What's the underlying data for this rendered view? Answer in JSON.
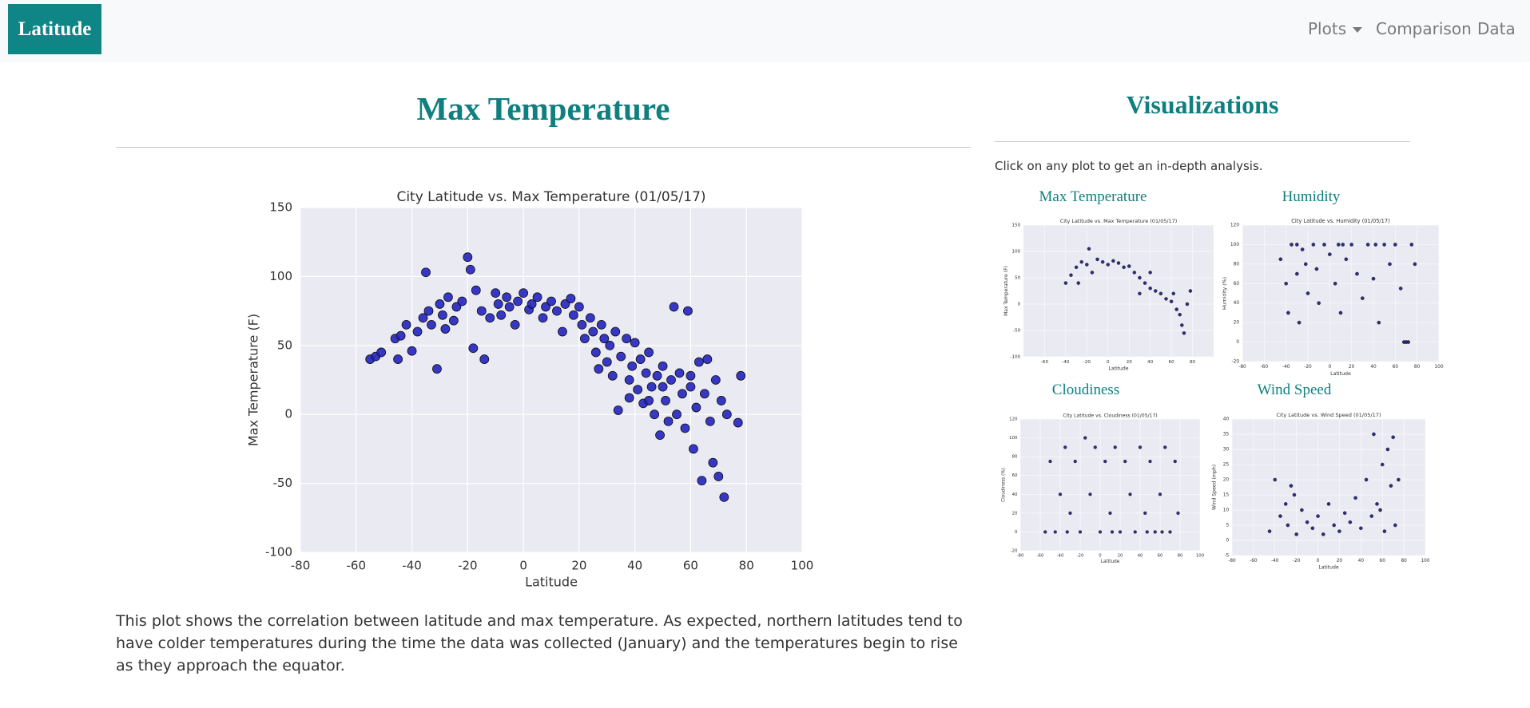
{
  "navbar": {
    "brand": "Latitude",
    "links": [
      "Plots",
      "Comparison",
      "Data"
    ]
  },
  "main": {
    "heading": "Max Temperature",
    "description": "This plot shows the correlation between latitude and max temperature. As expected, northern latitudes tend to have colder temperatures during the time the data was collected (January) and the temperatures begin to rise as they approach the equator."
  },
  "sidebar": {
    "heading": "Visualizations",
    "instruction": "Click on any plot to get an in-depth analysis.",
    "plot_titles": [
      "Max Temperature",
      "Humidity",
      "Cloudiness",
      "Wind Speed"
    ]
  },
  "chart_data": [
    {
      "type": "scatter",
      "title": "City Latitude vs. Max Temperature (01/05/17)",
      "x_label": "Latitude",
      "y_label": "Max Temperature (F)",
      "xlim": [
        -80,
        100
      ],
      "ylim": [
        -100,
        150
      ],
      "xticks": [
        -80,
        -60,
        -40,
        -20,
        0,
        20,
        40,
        60,
        80,
        100
      ],
      "yticks": [
        -100,
        -50,
        0,
        50,
        100,
        150
      ],
      "grid": true,
      "color": "#2424c0",
      "x": [
        -55,
        -53,
        -51,
        -46,
        -45,
        -44,
        -42,
        -40,
        -38,
        -36,
        -35,
        -34,
        -33,
        -31,
        -30,
        -29,
        -28,
        -27,
        -25,
        -24,
        -22,
        -20,
        -19,
        -18,
        -17,
        -15,
        -14,
        -12,
        -10,
        -9,
        -8,
        -6,
        -5,
        -3,
        -2,
        0,
        2,
        3,
        5,
        7,
        8,
        10,
        12,
        14,
        15,
        17,
        18,
        20,
        21,
        22,
        24,
        25,
        26,
        28,
        29,
        30,
        31,
        32,
        33,
        34,
        35,
        37,
        38,
        39,
        40,
        41,
        42,
        43,
        44,
        45,
        46,
        47,
        48,
        49,
        50,
        51,
        52,
        53,
        54,
        55,
        56,
        57,
        58,
        59,
        60,
        61,
        62,
        63,
        64,
        65,
        66,
        67,
        68,
        69,
        70,
        71,
        72,
        73,
        77,
        78,
        60,
        50,
        45,
        38,
        27
      ],
      "values": [
        40,
        42,
        45,
        55,
        40,
        57,
        65,
        46,
        60,
        70,
        103,
        75,
        65,
        33,
        80,
        72,
        62,
        85,
        68,
        78,
        82,
        114,
        105,
        48,
        90,
        75,
        40,
        70,
        88,
        80,
        72,
        85,
        78,
        65,
        82,
        88,
        76,
        80,
        85,
        70,
        78,
        82,
        75,
        60,
        80,
        84,
        72,
        78,
        65,
        55,
        70,
        60,
        45,
        65,
        55,
        38,
        50,
        28,
        60,
        3,
        42,
        55,
        25,
        35,
        52,
        18,
        40,
        8,
        30,
        45,
        20,
        0,
        28,
        -15,
        35,
        10,
        -5,
        25,
        78,
        0,
        30,
        15,
        -10,
        75,
        20,
        -25,
        5,
        38,
        -48,
        15,
        40,
        -5,
        -35,
        25,
        -45,
        10,
        -60,
        0,
        -6,
        28,
        28,
        20,
        10,
        12,
        33
      ]
    },
    {
      "type": "scatter",
      "title": "City Latitude vs. Max Temperature (01/05/17)",
      "x_label": "Latitude",
      "y_label": "Max Temperature (F)",
      "xlim": [
        -80,
        100
      ],
      "ylim": [
        -100,
        150
      ],
      "xticks": [
        -60,
        -40,
        -20,
        0,
        20,
        40,
        60,
        80
      ],
      "yticks": [
        -100,
        -50,
        0,
        50,
        100,
        150
      ],
      "grid": true,
      "color": "#191970",
      "x": [
        -40,
        -35,
        -30,
        -25,
        -20,
        -18,
        -15,
        -10,
        -5,
        0,
        5,
        10,
        15,
        20,
        25,
        30,
        35,
        40,
        45,
        50,
        55,
        60,
        62,
        65,
        68,
        70,
        72,
        75,
        78,
        40,
        30,
        -28
      ],
      "values": [
        40,
        55,
        70,
        80,
        75,
        105,
        60,
        85,
        80,
        75,
        82,
        78,
        70,
        72,
        60,
        50,
        40,
        30,
        25,
        20,
        10,
        5,
        20,
        -10,
        -20,
        -40,
        -55,
        0,
        25,
        60,
        20,
        40
      ]
    },
    {
      "type": "scatter",
      "title": "City Latitude vs. Humidity (01/05/17)",
      "x_label": "Latitude",
      "y_label": "Humidity (%)",
      "xlim": [
        -80,
        100
      ],
      "ylim": [
        -20,
        120
      ],
      "xticks": [
        -80,
        -60,
        -40,
        -20,
        0,
        20,
        40,
        60,
        80,
        100
      ],
      "yticks": [
        -20,
        0,
        20,
        40,
        60,
        80,
        100,
        120
      ],
      "grid": true,
      "color": "#191970",
      "x": [
        -45,
        -40,
        -38,
        -35,
        -30,
        -28,
        -25,
        -22,
        -20,
        -15,
        -12,
        -10,
        -5,
        0,
        5,
        8,
        10,
        15,
        20,
        25,
        30,
        35,
        40,
        45,
        50,
        55,
        60,
        65,
        68,
        70,
        72,
        75,
        78,
        -30,
        42,
        12
      ],
      "values": [
        85,
        60,
        30,
        100,
        70,
        20,
        95,
        80,
        50,
        100,
        75,
        40,
        100,
        90,
        60,
        100,
        30,
        85,
        100,
        70,
        45,
        100,
        65,
        20,
        100,
        80,
        100,
        55,
        0,
        0,
        0,
        100,
        80,
        100,
        100,
        100
      ]
    },
    {
      "type": "scatter",
      "title": "City Latitude vs. Cloudiness (01/05/17)",
      "x_label": "Latitude",
      "y_label": "Cloudiness (%)",
      "xlim": [
        -80,
        100
      ],
      "ylim": [
        -20,
        120
      ],
      "xticks": [
        -80,
        -60,
        -40,
        -20,
        0,
        20,
        40,
        60,
        80,
        100
      ],
      "yticks": [
        -20,
        0,
        20,
        40,
        60,
        80,
        100,
        120
      ],
      "grid": true,
      "color": "#191970",
      "x": [
        -55,
        -50,
        -45,
        -40,
        -35,
        -30,
        -25,
        -20,
        -15,
        -10,
        -5,
        0,
        5,
        10,
        15,
        20,
        25,
        30,
        35,
        40,
        45,
        50,
        55,
        60,
        65,
        70,
        75,
        78,
        -33,
        12,
        47,
        62
      ],
      "values": [
        0,
        75,
        0,
        40,
        90,
        20,
        75,
        0,
        100,
        40,
        90,
        0,
        75,
        20,
        90,
        0,
        75,
        40,
        0,
        90,
        20,
        75,
        0,
        40,
        90,
        0,
        75,
        20,
        0,
        0,
        0,
        0
      ]
    },
    {
      "type": "scatter",
      "title": "City Latitude vs. Wind Speed (01/05/17)",
      "x_label": "Latitude",
      "y_label": "Wind Speed (mph)",
      "xlim": [
        -80,
        100
      ],
      "ylim": [
        -5,
        40
      ],
      "xticks": [
        -80,
        -60,
        -40,
        -20,
        0,
        20,
        40,
        60,
        80,
        100
      ],
      "yticks": [
        -5,
        0,
        5,
        10,
        15,
        20,
        25,
        30,
        35,
        40
      ],
      "grid": true,
      "color": "#191970",
      "x": [
        -45,
        -40,
        -35,
        -30,
        -28,
        -25,
        -20,
        -15,
        -10,
        -5,
        0,
        5,
        10,
        15,
        20,
        25,
        30,
        35,
        40,
        45,
        50,
        52,
        55,
        60,
        62,
        65,
        68,
        70,
        72,
        75,
        -22,
        58
      ],
      "values": [
        3,
        20,
        8,
        12,
        5,
        18,
        2,
        10,
        6,
        4,
        8,
        2,
        12,
        5,
        3,
        9,
        6,
        14,
        4,
        20,
        8,
        35,
        12,
        25,
        3,
        30,
        18,
        34,
        5,
        20,
        15,
        10
      ]
    }
  ]
}
